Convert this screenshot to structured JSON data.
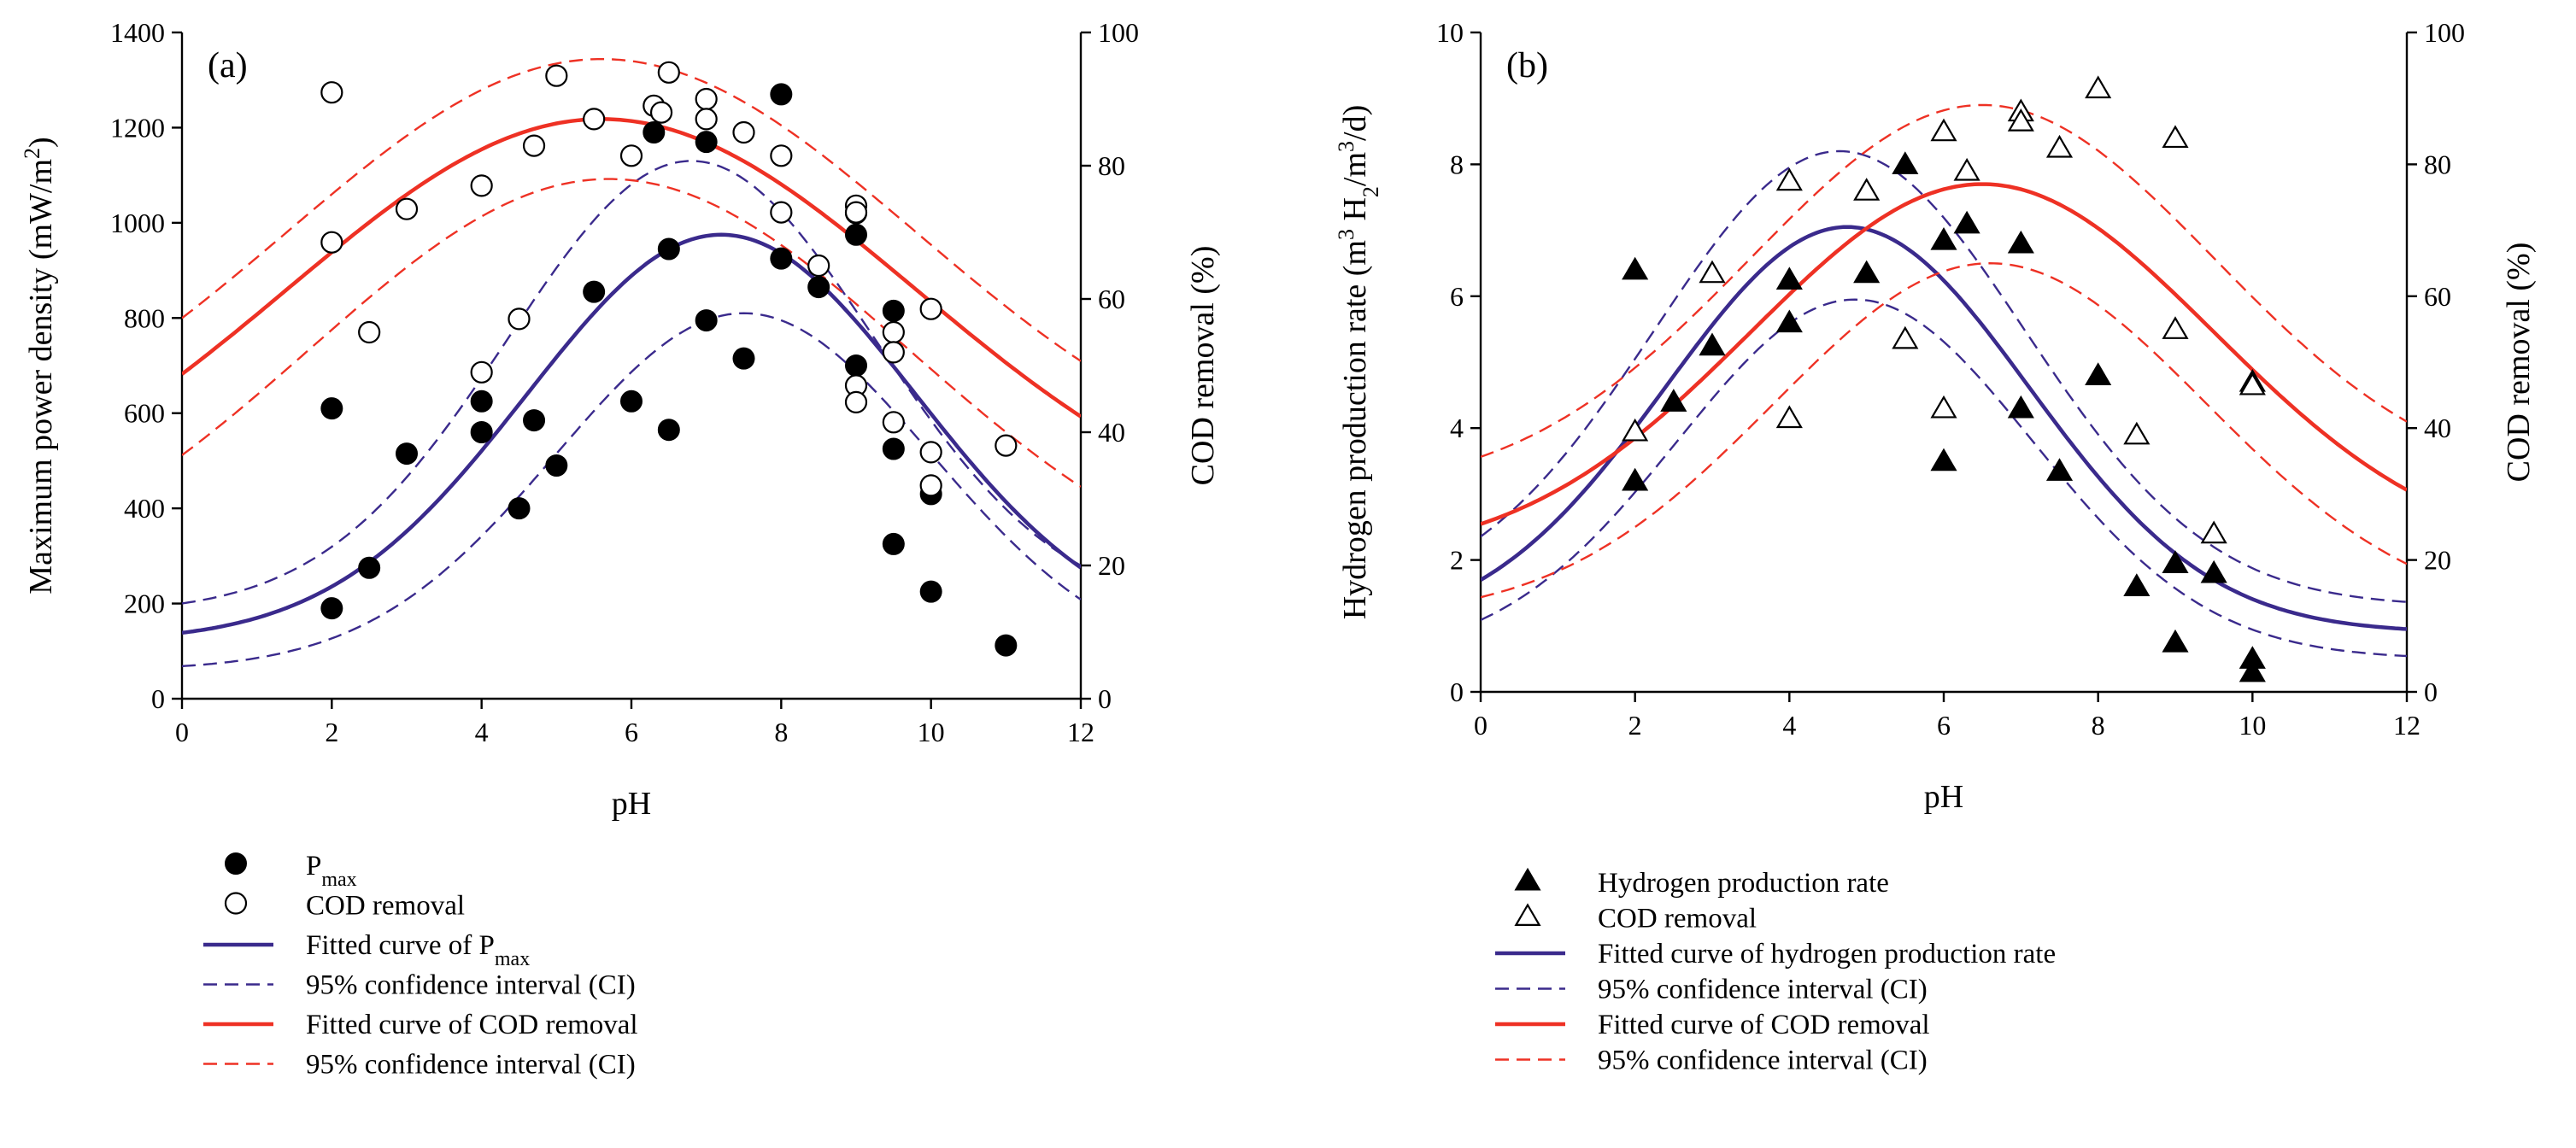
{
  "colors": {
    "navy": "#3a2a8c",
    "red": "#ee3124",
    "black": "#000000"
  },
  "chart_data": [
    {
      "type": "scatter",
      "panel_label": "(a)",
      "xlabel": "pH",
      "ylabel_left": "Maximum power density (mW/m",
      "ylabel_left_sup": "2",
      "ylabel_left_end": ")",
      "ylabel_right": "COD removal (%)",
      "xlim": [
        0,
        12
      ],
      "ylim_left": [
        0,
        1400
      ],
      "ylim_right": [
        0,
        100
      ],
      "x_ticks": [
        0,
        2,
        4,
        6,
        8,
        10,
        12
      ],
      "y_left_ticks": [
        0,
        200,
        400,
        600,
        800,
        1000,
        1200,
        1400
      ],
      "y_right_ticks": [
        0,
        20,
        40,
        60,
        80,
        100
      ],
      "series": [
        {
          "name": "P",
          "sub": "max",
          "marker": "filled-circle",
          "axis": "left",
          "points": [
            [
              2,
              190
            ],
            [
              2,
              610
            ],
            [
              2.5,
              275
            ],
            [
              3,
              515
            ],
            [
              4,
              560
            ],
            [
              4,
              625
            ],
            [
              4.5,
              400
            ],
            [
              4.7,
              585
            ],
            [
              5,
              490
            ],
            [
              5.5,
              855
            ],
            [
              6,
              625
            ],
            [
              6.3,
              1190
            ],
            [
              6.5,
              565
            ],
            [
              6.5,
              945
            ],
            [
              7,
              1170
            ],
            [
              7,
              795
            ],
            [
              7.5,
              715
            ],
            [
              8,
              1270
            ],
            [
              8,
              925
            ],
            [
              8.5,
              865
            ],
            [
              9,
              1020
            ],
            [
              9,
              975
            ],
            [
              9,
              700
            ],
            [
              9.5,
              815
            ],
            [
              9.5,
              525
            ],
            [
              9.5,
              325
            ],
            [
              10,
              430
            ],
            [
              10,
              225
            ],
            [
              11,
              112
            ]
          ]
        },
        {
          "name": "COD removal",
          "marker": "open-circle",
          "axis": "right",
          "points": [
            [
              2,
              91
            ],
            [
              2,
              68.5
            ],
            [
              2.5,
              55
            ],
            [
              3,
              73.5
            ],
            [
              4,
              77
            ],
            [
              4,
              49
            ],
            [
              4.5,
              57
            ],
            [
              4.7,
              83
            ],
            [
              5,
              93.5
            ],
            [
              5.5,
              87
            ],
            [
              6,
              81.5
            ],
            [
              6.3,
              89
            ],
            [
              6.4,
              88
            ],
            [
              6.5,
              94
            ],
            [
              7,
              90
            ],
            [
              7,
              87
            ],
            [
              7.5,
              85
            ],
            [
              8,
              81.5
            ],
            [
              8,
              73
            ],
            [
              8.5,
              65
            ],
            [
              9,
              74
            ],
            [
              9,
              73
            ],
            [
              9,
              47
            ],
            [
              9,
              44.5
            ],
            [
              9.5,
              55
            ],
            [
              9.5,
              52
            ],
            [
              9.5,
              41.5
            ],
            [
              10,
              58.5
            ],
            [
              10,
              37
            ],
            [
              10,
              32
            ],
            [
              11,
              38
            ]
          ]
        },
        {
          "name": "Fitted curve of P",
          "sub": "max",
          "type": "gaussian",
          "axis": "left",
          "params": {
            "base": 120,
            "amp": 855,
            "center": 7.2,
            "width": 2.6
          }
        },
        {
          "name": "95% confidence interval (CI)",
          "type": "gaussian-pair",
          "axis": "left",
          "params_upper": {
            "base": 180,
            "amp": 950,
            "center": 6.8,
            "width": 2.45
          },
          "params_lower": {
            "base": 60,
            "amp": 750,
            "center": 7.5,
            "width": 2.5
          }
        },
        {
          "name": "Fitted curve of COD removal",
          "type": "gaussian",
          "axis": "right",
          "params": {
            "base": 22,
            "amp": 65,
            "center": 5.6,
            "width": 4.2
          }
        },
        {
          "name": "95% confidence interval (CI)",
          "type": "gaussian-pair",
          "axis": "right",
          "params_upper": {
            "base": 30,
            "amp": 66,
            "center": 5.6,
            "width": 4.2
          },
          "params_lower": {
            "base": 13,
            "amp": 65,
            "center": 5.7,
            "width": 4.0
          }
        }
      ],
      "legend": [
        {
          "marker": "filled-circle",
          "label": "P",
          "sub": "max"
        },
        {
          "marker": "open-circle",
          "label": "COD removal"
        },
        {
          "marker": "line-navy",
          "label": "Fitted curve of P",
          "sub": "max"
        },
        {
          "marker": "dash-navy",
          "label": "95% confidence interval (CI)"
        },
        {
          "marker": "line-red",
          "label": "Fitted curve of COD removal"
        },
        {
          "marker": "dash-red",
          "label": "95% confidence interval (CI)"
        }
      ]
    },
    {
      "type": "scatter",
      "panel_label": "(b)",
      "xlabel": "pH",
      "ylabel_left": "Hydrogen production rate (m",
      "ylabel_left_sup": "3",
      "ylabel_left_mid": " H",
      "ylabel_left_sub": "2",
      "ylabel_left_mid2": "/m",
      "ylabel_left_sup2": "3",
      "ylabel_left_end": "/d)",
      "ylabel_right": "COD removal (%)",
      "xlim": [
        0,
        12
      ],
      "ylim_left": [
        0,
        10
      ],
      "ylim_right": [
        0,
        100
      ],
      "x_ticks": [
        0,
        2,
        4,
        6,
        8,
        10,
        12
      ],
      "y_left_ticks": [
        0,
        2,
        4,
        6,
        8,
        10
      ],
      "y_right_ticks": [
        0,
        20,
        40,
        60,
        80,
        100
      ],
      "series": [
        {
          "name": "Hydrogen production rate",
          "marker": "filled-triangle",
          "axis": "left",
          "points": [
            [
              2,
              6.4
            ],
            [
              2,
              3.2
            ],
            [
              2.5,
              4.4
            ],
            [
              3,
              5.25
            ],
            [
              4,
              6.25
            ],
            [
              4,
              5.6
            ],
            [
              5,
              6.35
            ],
            [
              5.5,
              8
            ],
            [
              6,
              6.85
            ],
            [
              6,
              3.5
            ],
            [
              6.3,
              7.1
            ],
            [
              7,
              6.8
            ],
            [
              7,
              4.3
            ],
            [
              7.5,
              3.35
            ],
            [
              8,
              4.8
            ],
            [
              8.5,
              1.6
            ],
            [
              9,
              1.95
            ],
            [
              9,
              0.75
            ],
            [
              9.5,
              1.8
            ],
            [
              10,
              0.5
            ],
            [
              10,
              0.3
            ]
          ]
        },
        {
          "name": "COD removal",
          "marker": "open-triangle",
          "axis": "right",
          "points": [
            [
              2,
              39.5
            ],
            [
              3,
              63.5
            ],
            [
              4,
              77.5
            ],
            [
              4,
              41.5
            ],
            [
              5,
              76
            ],
            [
              5.5,
              53.5
            ],
            [
              6,
              85
            ],
            [
              6,
              43
            ],
            [
              6.3,
              79
            ],
            [
              7,
              88
            ],
            [
              7,
              86.5
            ],
            [
              7.5,
              82.5
            ],
            [
              8,
              91.5
            ],
            [
              8.5,
              39
            ],
            [
              9,
              84
            ],
            [
              9,
              55
            ],
            [
              9.5,
              24
            ],
            [
              10,
              47
            ],
            [
              10,
              46.5
            ]
          ]
        },
        {
          "name": "Fitted curve of hydrogen production rate",
          "type": "gaussian",
          "axis": "left",
          "params": {
            "base": 0.9,
            "amp": 6.15,
            "center": 4.75,
            "width": 2.35
          }
        },
        {
          "name": "95% confidence interval (CI)",
          "type": "gaussian-pair",
          "axis": "left",
          "params_upper": {
            "base": 1.3,
            "amp": 6.9,
            "center": 4.65,
            "width": 2.4
          },
          "params_lower": {
            "base": 0.5,
            "amp": 5.45,
            "center": 4.85,
            "width": 2.3
          }
        },
        {
          "name": "Fitted curve of COD removal",
          "type": "gaussian",
          "axis": "right",
          "params": {
            "base": 20,
            "amp": 57,
            "center": 6.5,
            "width": 3.0
          }
        },
        {
          "name": "95% confidence interval (CI)",
          "type": "gaussian-pair",
          "axis": "right",
          "params_upper": {
            "base": 30,
            "amp": 59,
            "center": 6.5,
            "width": 3.0
          },
          "params_lower": {
            "base": 11,
            "amp": 54,
            "center": 6.6,
            "width": 2.8
          }
        }
      ],
      "legend": [
        {
          "marker": "filled-triangle",
          "label": "Hydrogen production rate"
        },
        {
          "marker": "open-triangle",
          "label": "COD removal"
        },
        {
          "marker": "line-navy",
          "label": "Fitted curve of hydrogen production rate"
        },
        {
          "marker": "dash-navy",
          "label": "95% confidence interval (CI)"
        },
        {
          "marker": "line-red",
          "label": "Fitted curve of COD removal"
        },
        {
          "marker": "dash-red",
          "label": "95% confidence interval (CI)"
        }
      ]
    }
  ]
}
